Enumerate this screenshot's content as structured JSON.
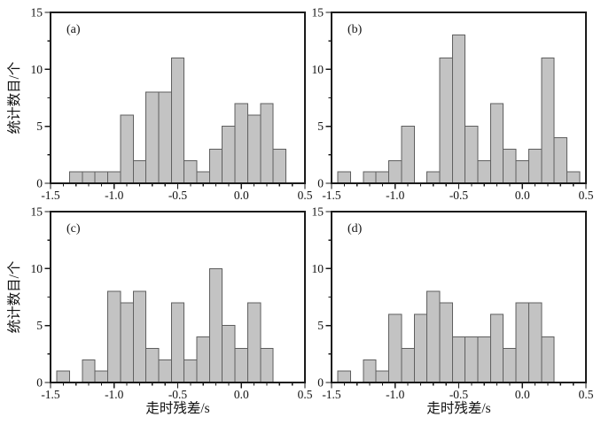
{
  "figure": {
    "background": "#ffffff",
    "bar_fill": "#c3c3c3",
    "bar_stroke": "#5f5f5f",
    "axis_color": "#1a1a1a",
    "text_color": "#111111"
  },
  "chart_data": [
    {
      "type": "bar",
      "panel_label": "(a)",
      "xlabel": "",
      "ylabel": "统计数目/个",
      "xlim": [
        -1.5,
        0.5
      ],
      "ylim": [
        0,
        15
      ],
      "x_ticks": [
        {
          "v": -1.5,
          "label": "-1.5"
        },
        {
          "v": -1.0,
          "label": "-1.0"
        },
        {
          "v": -0.5,
          "label": "-0.5"
        },
        {
          "v": 0.0,
          "label": "0.0"
        },
        {
          "v": 0.5,
          "label": "0.5"
        }
      ],
      "y_ticks": [
        {
          "v": 0,
          "label": "0"
        },
        {
          "v": 5,
          "label": "5"
        },
        {
          "v": 10,
          "label": "10"
        },
        {
          "v": 15,
          "label": "15"
        }
      ],
      "x_minor_step": 0.1,
      "y_minor_step": 2.5,
      "bin_width": 0.1,
      "bins": [
        [
          -1.3,
          1
        ],
        [
          -1.2,
          1
        ],
        [
          -1.1,
          1
        ],
        [
          -1.0,
          1
        ],
        [
          -0.9,
          6
        ],
        [
          -0.8,
          2
        ],
        [
          -0.7,
          8
        ],
        [
          -0.6,
          8
        ],
        [
          -0.5,
          11
        ],
        [
          -0.4,
          2
        ],
        [
          -0.3,
          1
        ],
        [
          -0.2,
          3
        ],
        [
          -0.1,
          5
        ],
        [
          0.0,
          7
        ],
        [
          0.1,
          6
        ],
        [
          0.2,
          7
        ],
        [
          0.3,
          3
        ]
      ]
    },
    {
      "type": "bar",
      "panel_label": "(b)",
      "xlabel": "",
      "ylabel": "",
      "xlim": [
        -1.5,
        0.5
      ],
      "ylim": [
        0,
        15
      ],
      "x_ticks": [
        {
          "v": -1.5,
          "label": "-1.5"
        },
        {
          "v": -1.0,
          "label": "-1.0"
        },
        {
          "v": -0.5,
          "label": "-0.5"
        },
        {
          "v": 0.0,
          "label": "0.0"
        },
        {
          "v": 0.5,
          "label": "0.5"
        }
      ],
      "y_ticks": [
        {
          "v": 0,
          "label": "0"
        },
        {
          "v": 5,
          "label": "5"
        },
        {
          "v": 10,
          "label": "10"
        },
        {
          "v": 15,
          "label": "15"
        }
      ],
      "x_minor_step": 0.1,
      "y_minor_step": 2.5,
      "bin_width": 0.1,
      "bins": [
        [
          -1.4,
          1
        ],
        [
          -1.2,
          1
        ],
        [
          -1.1,
          1
        ],
        [
          -1.0,
          2
        ],
        [
          -0.9,
          5
        ],
        [
          -0.7,
          1
        ],
        [
          -0.6,
          11
        ],
        [
          -0.5,
          13
        ],
        [
          -0.4,
          5
        ],
        [
          -0.3,
          2
        ],
        [
          -0.2,
          7
        ],
        [
          -0.1,
          3
        ],
        [
          0.0,
          2
        ],
        [
          0.1,
          3
        ],
        [
          0.2,
          11
        ],
        [
          0.3,
          4
        ],
        [
          0.4,
          1
        ]
      ]
    },
    {
      "type": "bar",
      "panel_label": "(c)",
      "xlabel": "走时残差/s",
      "ylabel": "统计数目/个",
      "xlim": [
        -1.5,
        0.5
      ],
      "ylim": [
        0,
        15
      ],
      "x_ticks": [
        {
          "v": -1.5,
          "label": "-1.5"
        },
        {
          "v": -1.0,
          "label": "-1.0"
        },
        {
          "v": -0.5,
          "label": "-0.5"
        },
        {
          "v": 0.0,
          "label": "0.0"
        },
        {
          "v": 0.5,
          "label": "0.5"
        }
      ],
      "y_ticks": [
        {
          "v": 0,
          "label": "0"
        },
        {
          "v": 5,
          "label": "5"
        },
        {
          "v": 10,
          "label": "10"
        },
        {
          "v": 15,
          "label": "15"
        }
      ],
      "x_minor_step": 0.1,
      "y_minor_step": 2.5,
      "bin_width": 0.1,
      "bins": [
        [
          -1.4,
          1
        ],
        [
          -1.2,
          2
        ],
        [
          -1.1,
          1
        ],
        [
          -1.0,
          8
        ],
        [
          -0.9,
          7
        ],
        [
          -0.8,
          8
        ],
        [
          -0.7,
          3
        ],
        [
          -0.6,
          2
        ],
        [
          -0.5,
          7
        ],
        [
          -0.4,
          2
        ],
        [
          -0.3,
          4
        ],
        [
          -0.2,
          10
        ],
        [
          -0.1,
          5
        ],
        [
          0.0,
          3
        ],
        [
          0.1,
          7
        ],
        [
          0.2,
          3
        ]
      ]
    },
    {
      "type": "bar",
      "panel_label": "(d)",
      "xlabel": "走时残差/s",
      "ylabel": "",
      "xlim": [
        -1.5,
        0.5
      ],
      "ylim": [
        0,
        15
      ],
      "x_ticks": [
        {
          "v": -1.5,
          "label": "-1.5"
        },
        {
          "v": -1.0,
          "label": "-1.0"
        },
        {
          "v": -0.5,
          "label": "-0.5"
        },
        {
          "v": 0.0,
          "label": "0.0"
        },
        {
          "v": 0.5,
          "label": "0.5"
        }
      ],
      "y_ticks": [
        {
          "v": 0,
          "label": "0"
        },
        {
          "v": 5,
          "label": "5"
        },
        {
          "v": 10,
          "label": "10"
        },
        {
          "v": 15,
          "label": "15"
        }
      ],
      "x_minor_step": 0.1,
      "y_minor_step": 2.5,
      "bin_width": 0.1,
      "bins": [
        [
          -1.4,
          1
        ],
        [
          -1.2,
          2
        ],
        [
          -1.1,
          1
        ],
        [
          -1.0,
          6
        ],
        [
          -0.9,
          3
        ],
        [
          -0.8,
          6
        ],
        [
          -0.7,
          8
        ],
        [
          -0.6,
          7
        ],
        [
          -0.5,
          4
        ],
        [
          -0.4,
          4
        ],
        [
          -0.3,
          4
        ],
        [
          -0.2,
          6
        ],
        [
          -0.1,
          3
        ],
        [
          0.0,
          7
        ],
        [
          0.1,
          7
        ],
        [
          0.2,
          4
        ]
      ]
    }
  ]
}
